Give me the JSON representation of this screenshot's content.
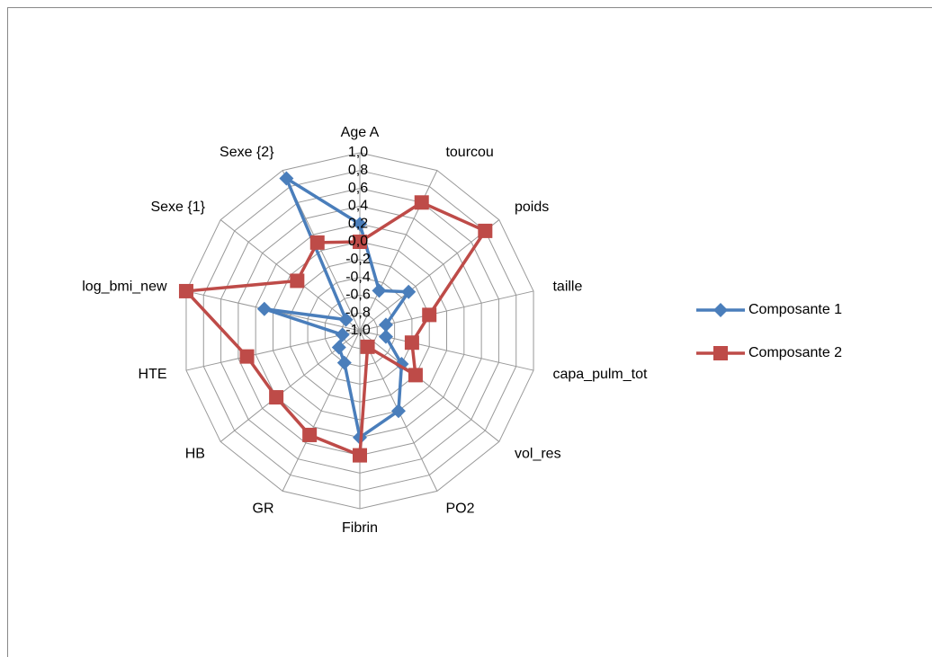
{
  "chart_data": {
    "type": "radar",
    "categories": [
      "Age A",
      "tourcou",
      "poids",
      "taille",
      "capa_pulm_tot",
      "vol_res",
      "PO2",
      "Fibrin",
      "GR",
      "HB",
      "HTE",
      "log_bmi_new",
      "Sexe {1}",
      "Sexe {2}"
    ],
    "series": [
      {
        "name": "Composante 1",
        "color": "#4a7ebb",
        "marker": "diamond",
        "values": [
          0.2,
          -0.5,
          -0.3,
          -0.7,
          -0.7,
          -0.4,
          0.0,
          0.2,
          -0.6,
          -0.7,
          -0.8,
          0.1,
          -0.8,
          0.9
        ]
      },
      {
        "name": "Composante 2",
        "color": "#be4b48",
        "marker": "square",
        "values": [
          0.0,
          0.6,
          0.8,
          -0.2,
          -0.4,
          -0.2,
          -0.8,
          0.4,
          0.3,
          0.2,
          0.3,
          1.0,
          -0.1,
          0.1
        ]
      }
    ],
    "ylim": [
      -1.0,
      1.0
    ],
    "yticks": [
      {
        "value": -1.0,
        "label": "-1,0"
      },
      {
        "value": -0.8,
        "label": "-0,8"
      },
      {
        "value": -0.6,
        "label": "-0,6"
      },
      {
        "value": -0.4,
        "label": "-0,4"
      },
      {
        "value": -0.2,
        "label": "-0,2"
      },
      {
        "value": 0.0,
        "label": "0,0"
      },
      {
        "value": 0.2,
        "label": "0,2"
      },
      {
        "value": 0.4,
        "label": "0,4"
      },
      {
        "value": 0.6,
        "label": "0,6"
      },
      {
        "value": 0.8,
        "label": "0,8"
      },
      {
        "value": 1.0,
        "label": "1,0"
      }
    ],
    "grid": true,
    "legend": "right"
  }
}
